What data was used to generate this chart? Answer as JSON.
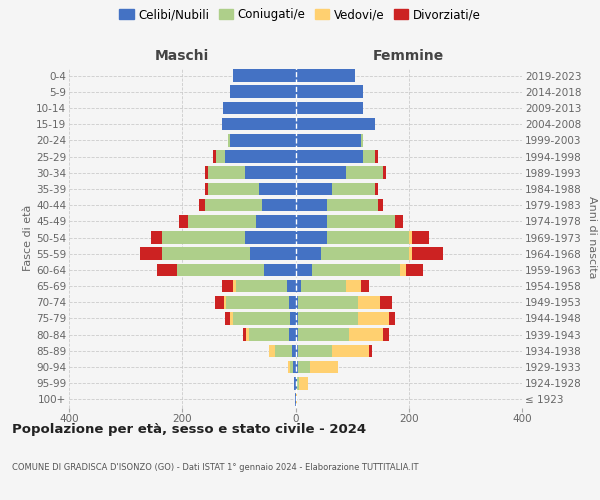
{
  "age_groups": [
    "100+",
    "95-99",
    "90-94",
    "85-89",
    "80-84",
    "75-79",
    "70-74",
    "65-69",
    "60-64",
    "55-59",
    "50-54",
    "45-49",
    "40-44",
    "35-39",
    "30-34",
    "25-29",
    "20-24",
    "15-19",
    "10-14",
    "5-9",
    "0-4"
  ],
  "birth_years": [
    "≤ 1923",
    "1924-1928",
    "1929-1933",
    "1934-1938",
    "1939-1943",
    "1944-1948",
    "1949-1953",
    "1954-1958",
    "1959-1963",
    "1964-1968",
    "1969-1973",
    "1974-1978",
    "1979-1983",
    "1984-1988",
    "1989-1993",
    "1994-1998",
    "1999-2003",
    "2004-2008",
    "2009-2013",
    "2014-2018",
    "2019-2023"
  ],
  "males_celibi": [
    1,
    2,
    4,
    6,
    12,
    10,
    12,
    15,
    55,
    80,
    90,
    70,
    60,
    65,
    90,
    125,
    115,
    130,
    128,
    115,
    110
  ],
  "males_coniugati": [
    0,
    0,
    5,
    30,
    70,
    100,
    110,
    90,
    155,
    155,
    145,
    120,
    100,
    90,
    65,
    15,
    5,
    0,
    0,
    0,
    0
  ],
  "males_vedovi": [
    0,
    0,
    5,
    10,
    5,
    5,
    5,
    5,
    0,
    0,
    0,
    0,
    0,
    0,
    0,
    0,
    0,
    0,
    0,
    0,
    0
  ],
  "males_divorziati": [
    0,
    0,
    0,
    0,
    5,
    10,
    15,
    20,
    35,
    40,
    20,
    15,
    10,
    5,
    5,
    5,
    0,
    0,
    0,
    0,
    0
  ],
  "fem_nubili": [
    1,
    2,
    5,
    5,
    5,
    5,
    5,
    10,
    30,
    45,
    55,
    55,
    55,
    65,
    90,
    120,
    115,
    140,
    120,
    120,
    105
  ],
  "fem_coniugate": [
    0,
    5,
    20,
    60,
    90,
    105,
    105,
    80,
    155,
    155,
    145,
    120,
    90,
    75,
    65,
    20,
    5,
    0,
    0,
    0,
    0
  ],
  "fem_vedove": [
    2,
    15,
    50,
    65,
    60,
    55,
    40,
    25,
    10,
    5,
    5,
    0,
    0,
    0,
    0,
    0,
    0,
    0,
    0,
    0,
    0
  ],
  "fem_divorziate": [
    0,
    0,
    0,
    5,
    10,
    10,
    20,
    15,
    30,
    55,
    30,
    15,
    10,
    5,
    5,
    5,
    0,
    0,
    0,
    0,
    0
  ],
  "color_celibi": "#4472C4",
  "color_coniugati": "#AECF8A",
  "color_vedovi": "#FFD070",
  "color_divorziati": "#CC2222",
  "xlim": 400,
  "title": "Popolazione per età, sesso e stato civile - 2024",
  "subtitle": "COMUNE DI GRADISCA D'ISONZO (GO) - Dati ISTAT 1° gennaio 2024 - Elaborazione TUTTITALIA.IT",
  "legend_labels": [
    "Celibi/Nubili",
    "Coniugati/e",
    "Vedovi/e",
    "Divorziati/e"
  ],
  "label_maschi": "Maschi",
  "label_femmine": "Femmine",
  "ylabel_left": "Fasce di età",
  "ylabel_right": "Anni di nascita",
  "bg_color": "#f5f5f5"
}
